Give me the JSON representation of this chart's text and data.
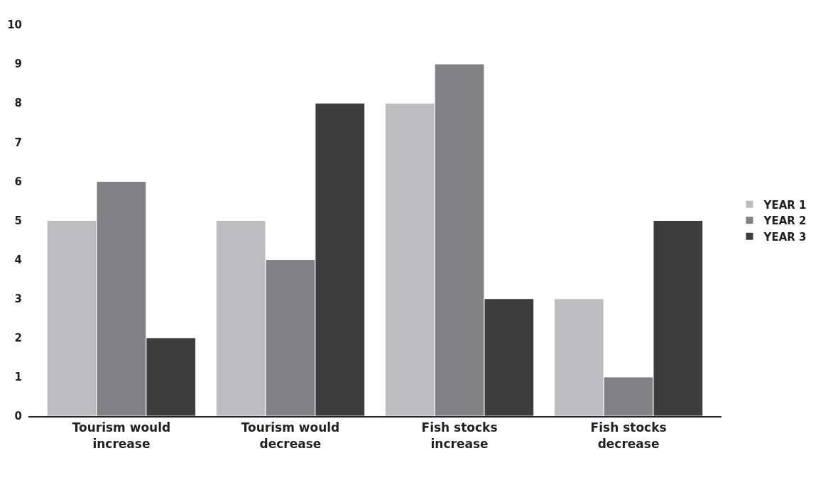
{
  "chart_data": {
    "type": "bar",
    "categories": [
      "Tourism would increase",
      "Tourism would decrease",
      "Fish stocks increase",
      "Fish stocks decrease"
    ],
    "series": [
      {
        "name": "YEAR 1",
        "color": "#bcbdc0",
        "values": [
          5,
          5,
          8,
          3
        ]
      },
      {
        "name": "YEAR 2",
        "color": "#808184",
        "values": [
          6,
          4,
          9,
          1
        ]
      },
      {
        "name": "YEAR 3",
        "color": "#3d3d3d",
        "values": [
          2,
          8,
          3,
          5
        ]
      }
    ],
    "ylim": [
      0,
      10
    ],
    "yticks": [
      0,
      1,
      2,
      3,
      4,
      5,
      6,
      7,
      8,
      9,
      10
    ],
    "grid": false,
    "legend": "right"
  }
}
